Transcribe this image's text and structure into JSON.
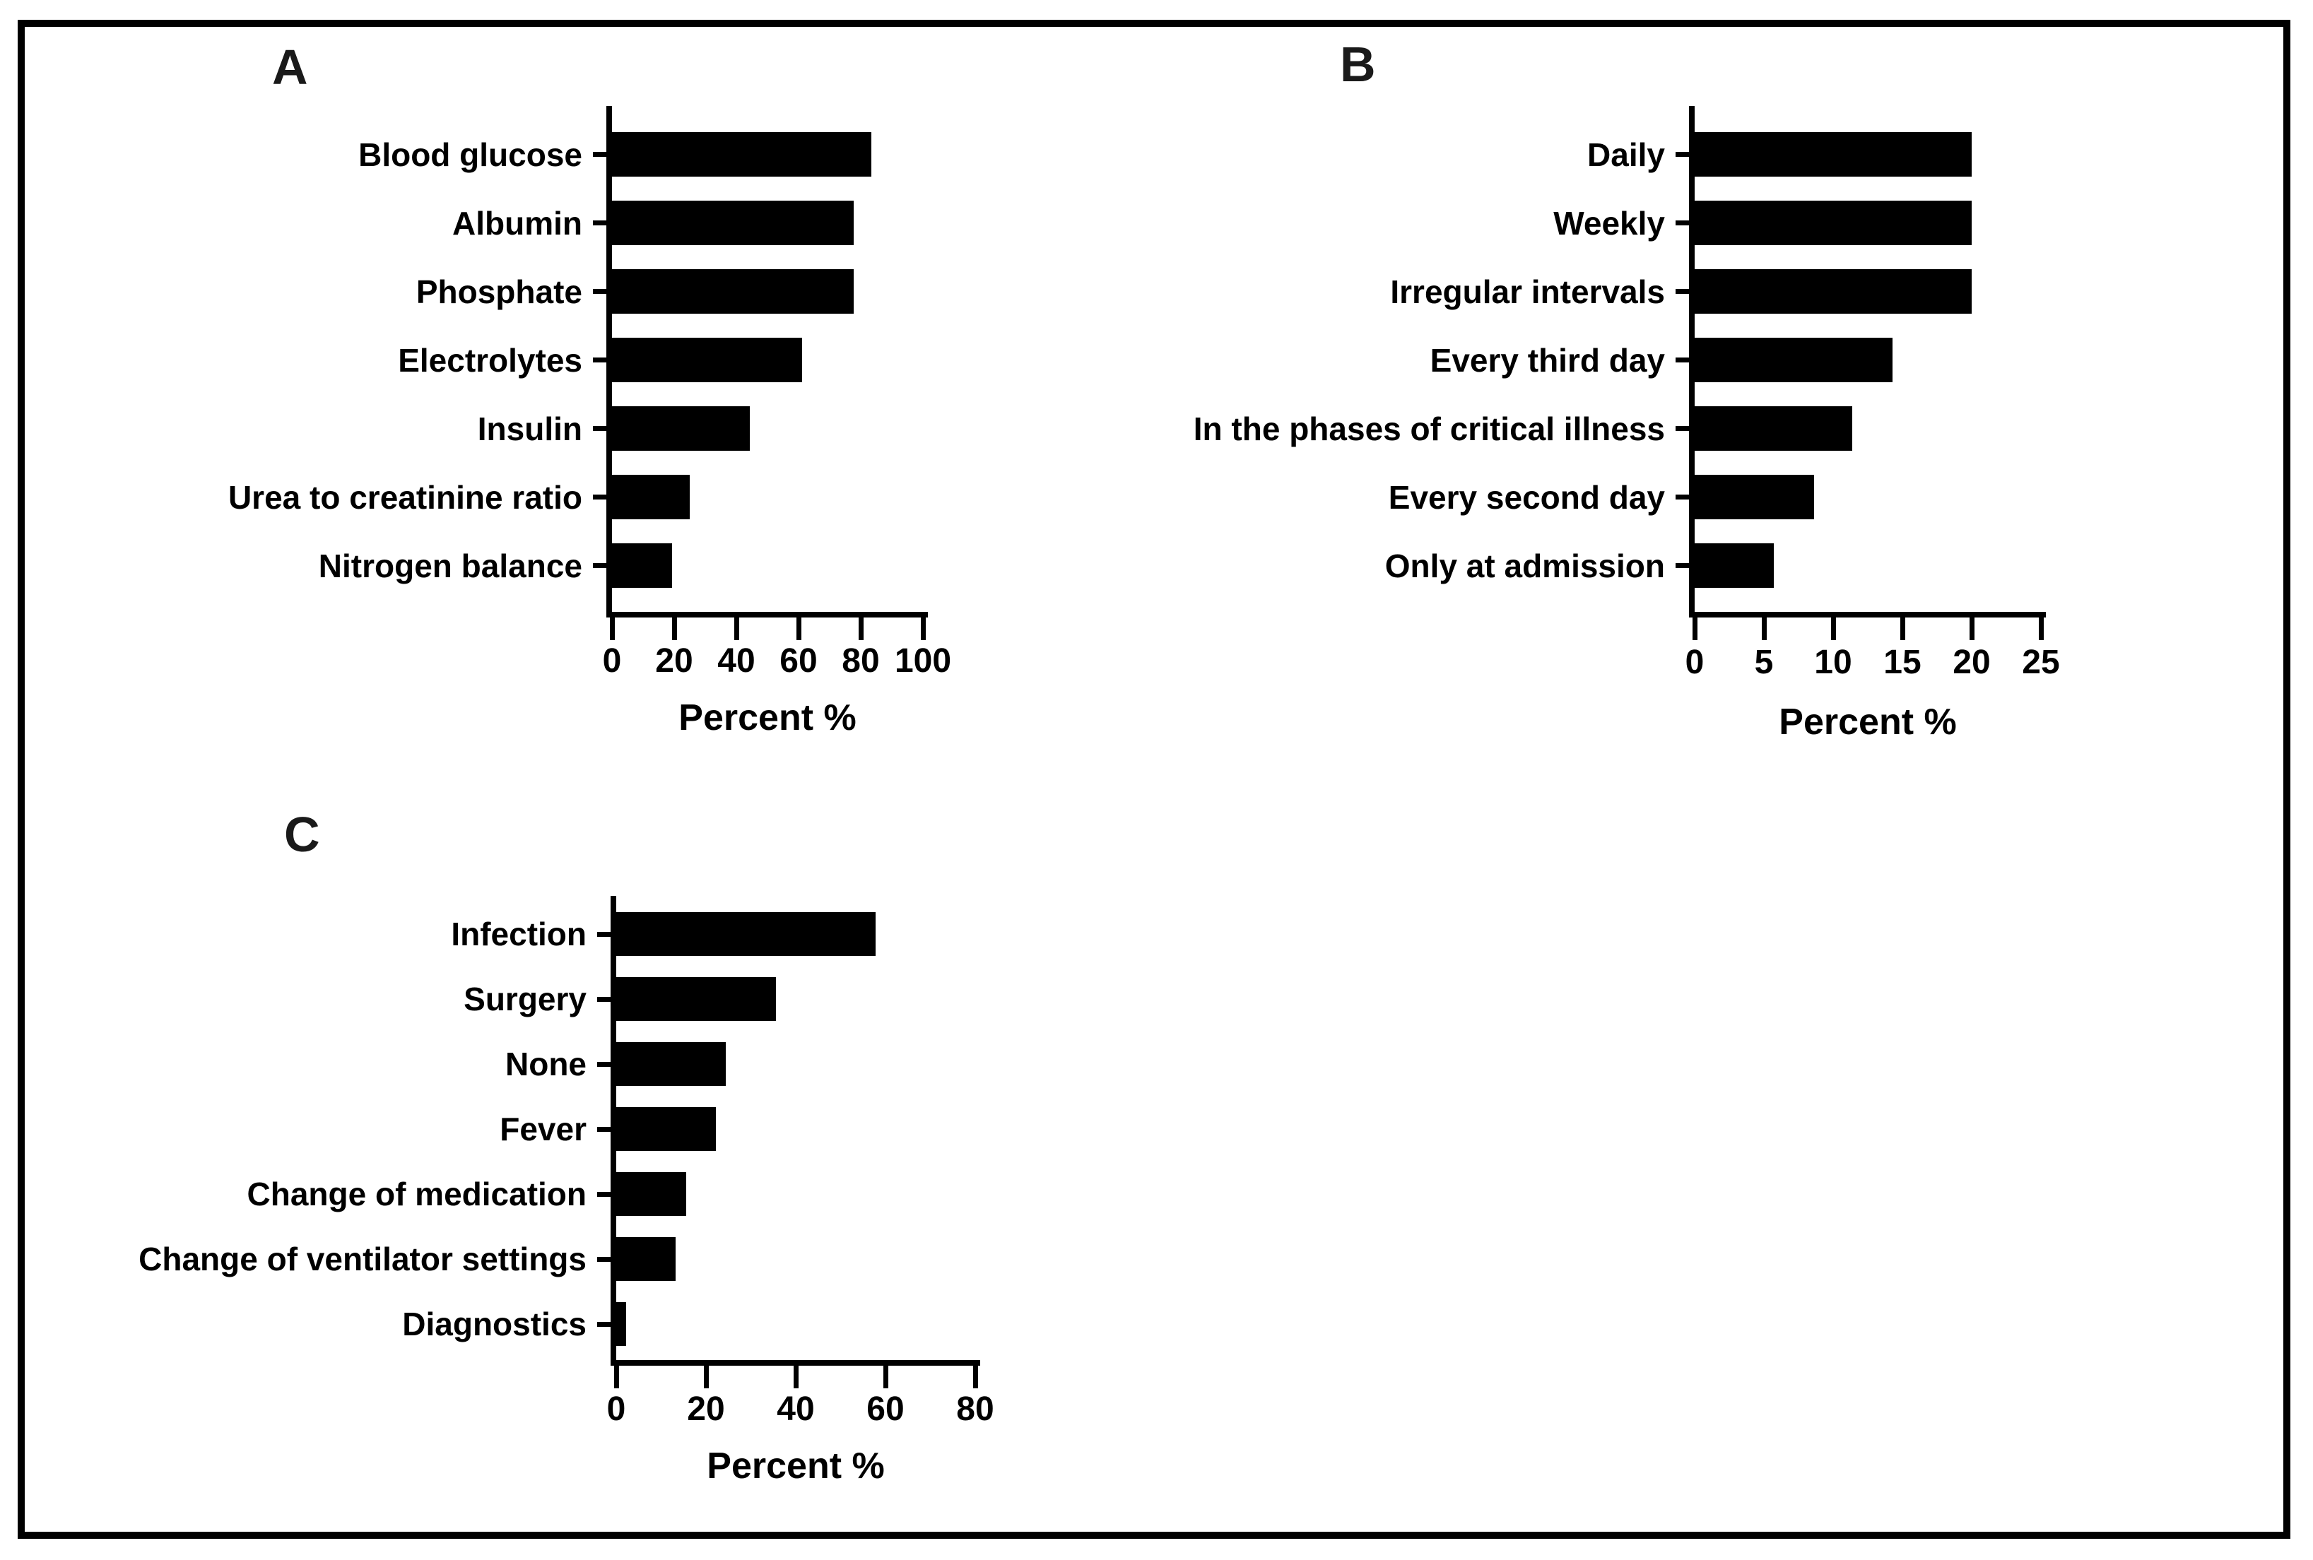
{
  "figure": {
    "background_color": "#ffffff",
    "border_color": "#000000",
    "bar_color": "#000000",
    "axis_color": "#000000"
  },
  "chart_data": [
    {
      "type": "bar",
      "panel_letter": "A",
      "orientation": "horizontal",
      "categories": [
        "Blood glucose",
        "Albumin",
        "Phosphate",
        "Electrolytes",
        "Insulin",
        "Urea to creatinine ratio",
        "Nitrogen balance"
      ],
      "values": [
        83.3,
        77.8,
        77.8,
        61.1,
        44.4,
        25.0,
        19.4
      ],
      "xlabel": "Percent %",
      "xlim": [
        0,
        100
      ],
      "xticks": [
        0,
        20,
        40,
        60,
        80,
        100
      ],
      "bar_color": "#000000",
      "grid": false,
      "legend_position": "none"
    },
    {
      "type": "bar",
      "panel_letter": "B",
      "orientation": "horizontal",
      "categories": [
        "Daily",
        "Weekly",
        "Irregular intervals",
        "Every third day",
        "In the phases of critical illness",
        "Every second day",
        "Only at admission"
      ],
      "values": [
        20.0,
        20.0,
        20.0,
        14.3,
        11.4,
        8.6,
        5.7
      ],
      "xlabel": "Percent %",
      "xlim": [
        0,
        25
      ],
      "xticks": [
        0,
        5,
        10,
        15,
        20,
        25
      ],
      "bar_color": "#000000",
      "grid": false,
      "legend_position": "none"
    },
    {
      "type": "bar",
      "panel_letter": "C",
      "orientation": "horizontal",
      "categories": [
        "Infection",
        "Surgery",
        "None",
        "Fever",
        "Change of medication",
        "Change of ventilator settings",
        "Diagnostics"
      ],
      "values": [
        57.8,
        35.6,
        24.4,
        22.2,
        15.6,
        13.3,
        2.2
      ],
      "xlabel": "Percent %",
      "xlim": [
        0,
        80
      ],
      "xticks": [
        0,
        20,
        40,
        60,
        80
      ],
      "bar_color": "#000000",
      "grid": false,
      "legend_position": "none"
    }
  ]
}
